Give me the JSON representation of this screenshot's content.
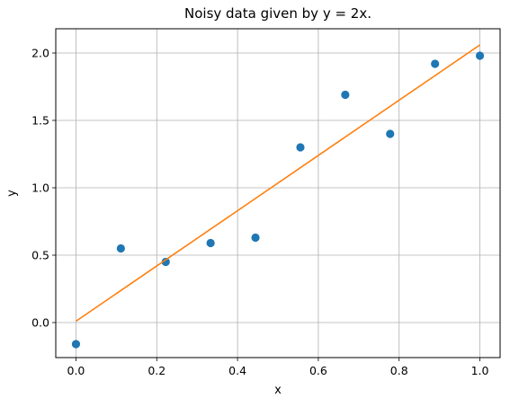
{
  "chart_data": {
    "type": "scatter",
    "title": "Noisy data given by y = 2x.",
    "xlabel": "x",
    "ylabel": "y",
    "xlim": [
      -0.05,
      1.05
    ],
    "ylim": [
      -0.26,
      2.18
    ],
    "grid": true,
    "xticks": [
      0.0,
      0.2,
      0.4,
      0.6,
      0.8,
      1.0
    ],
    "xtick_labels": [
      "0.0",
      "0.2",
      "0.4",
      "0.6",
      "0.8",
      "1.0"
    ],
    "yticks": [
      0.0,
      0.5,
      1.0,
      1.5,
      2.0
    ],
    "ytick_labels": [
      "0.0",
      "0.5",
      "1.0",
      "1.5",
      "2.0"
    ],
    "series": [
      {
        "kind": "scatter",
        "color": "#1f77b4",
        "x": [
          0.0,
          0.1111,
          0.2222,
          0.3333,
          0.4444,
          0.5556,
          0.6667,
          0.7778,
          0.8889,
          1.0
        ],
        "y": [
          -0.16,
          0.55,
          0.45,
          0.59,
          0.63,
          1.3,
          1.69,
          1.4,
          1.92,
          1.98
        ]
      },
      {
        "kind": "line",
        "color": "#ff7f0e",
        "x": [
          0.0,
          1.0
        ],
        "y": [
          0.01,
          2.06
        ]
      }
    ]
  }
}
